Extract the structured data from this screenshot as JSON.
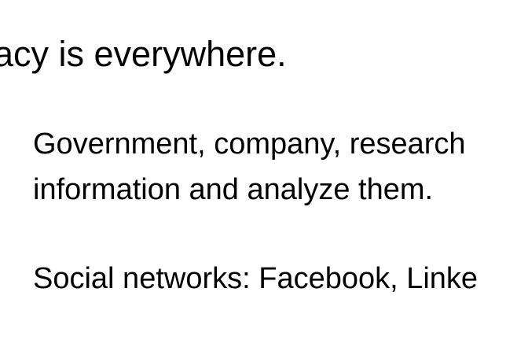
{
  "slide": {
    "heading": "acy is everywhere.",
    "bullets": [
      {
        "line1": "Government, company, research",
        "line2": "information and analyze them."
      },
      {
        "line1": "Social networks: Facebook, Linke"
      }
    ]
  }
}
